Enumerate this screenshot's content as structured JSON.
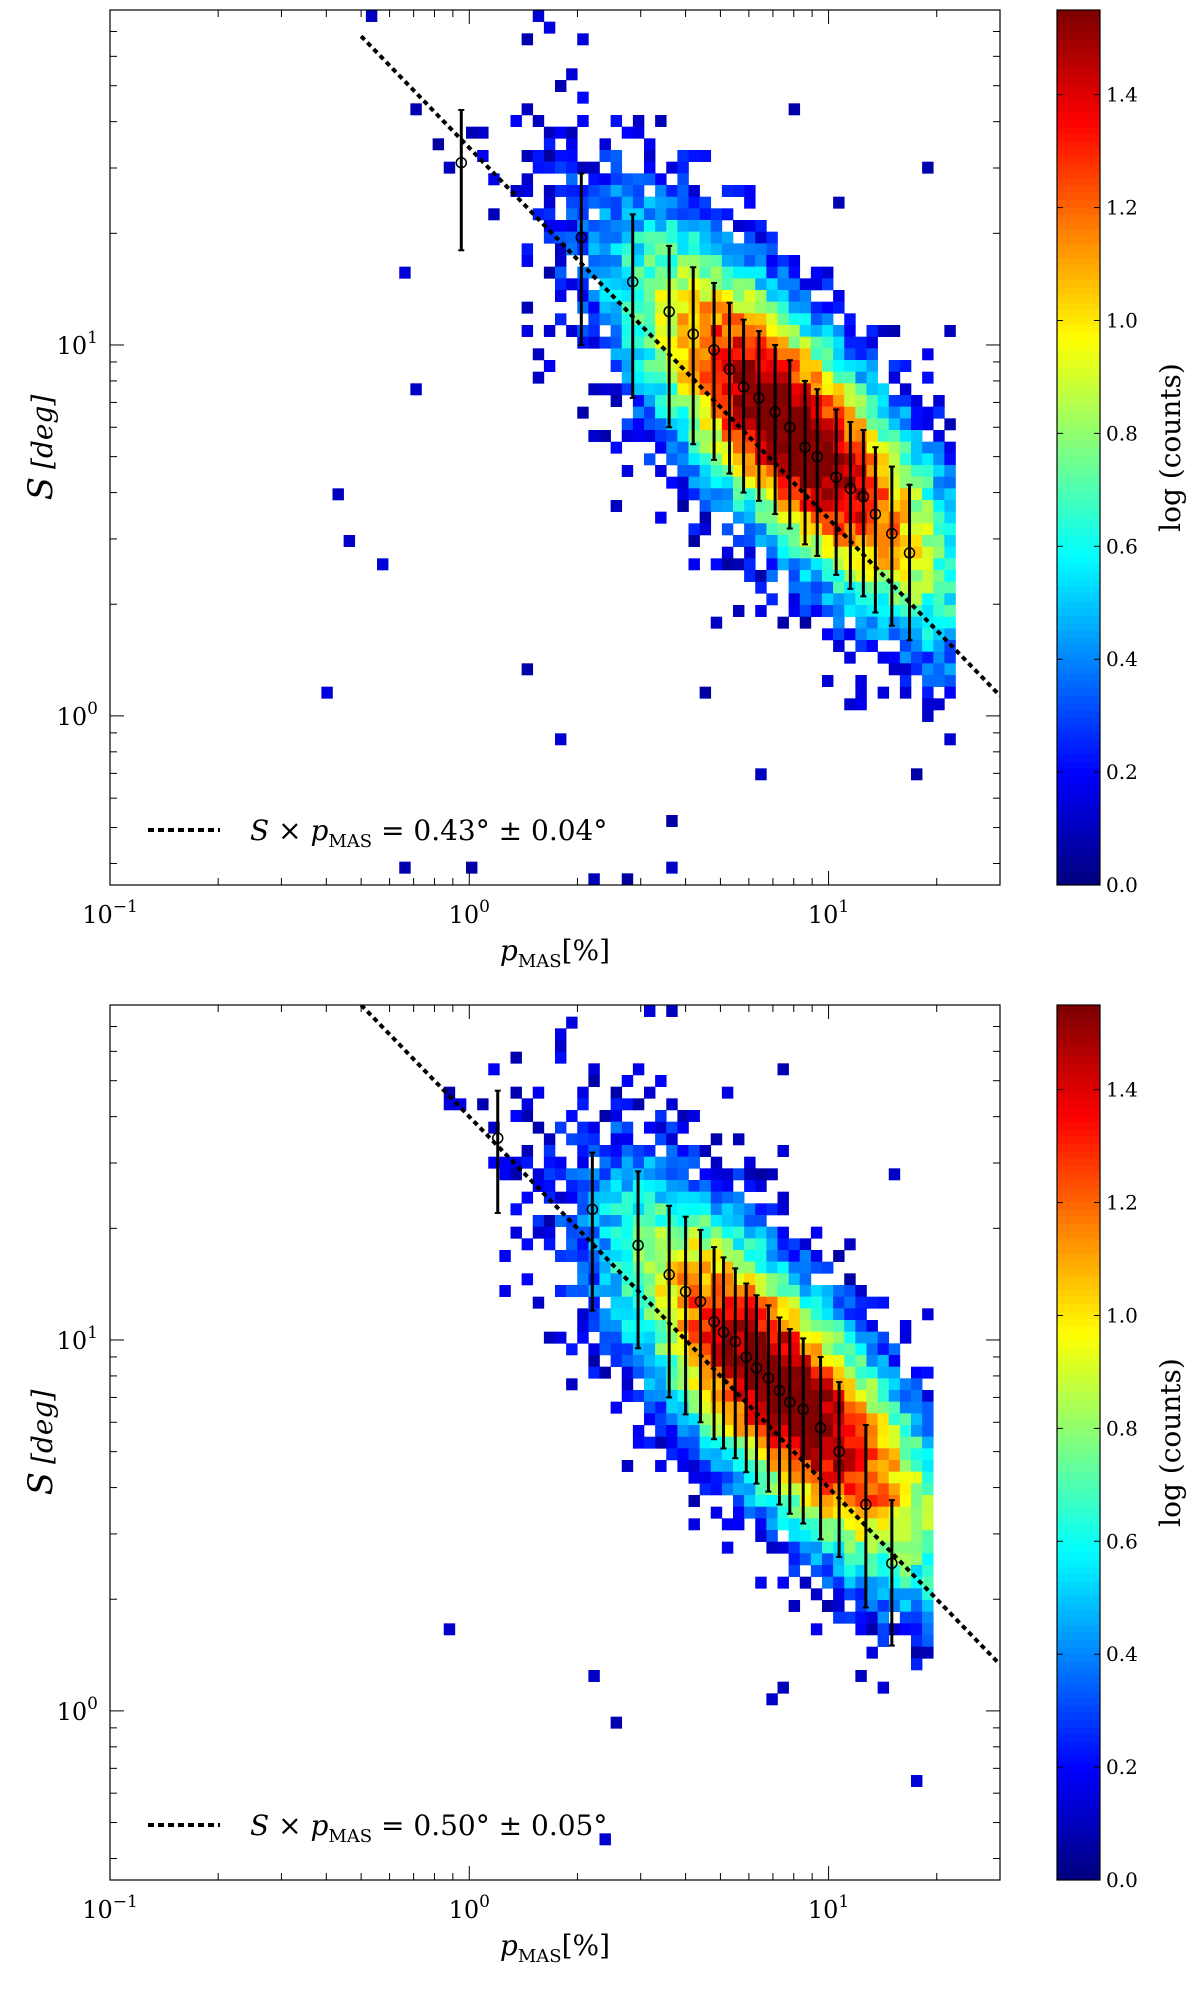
{
  "chart_data": [
    {
      "type": "heatmap",
      "panel": "top",
      "xlabel_base": "p",
      "xlabel_sub": "MAS",
      "xlabel_unit": "[%]",
      "ylabel_symbol": "S",
      "ylabel_unit": "[deg]",
      "xscale": "log",
      "yscale": "log",
      "xlim": [
        0.1,
        30
      ],
      "ylim": [
        0.35,
        80
      ],
      "x_ticks": [
        {
          "value": 0.1,
          "base": "10",
          "exp": "−1"
        },
        {
          "value": 1,
          "base": "10",
          "exp": "0"
        },
        {
          "value": 10,
          "base": "10",
          "exp": "1"
        }
      ],
      "y_ticks": [
        {
          "value": 1,
          "base": "10",
          "exp": "0"
        },
        {
          "value": 10,
          "base": "10",
          "exp": "1"
        }
      ],
      "colorbar": {
        "label": "log (counts)",
        "range": [
          0.0,
          1.55
        ],
        "ticks": [
          "0.0",
          "0.2",
          "0.4",
          "0.6",
          "0.8",
          "1.0",
          "1.2",
          "1.4"
        ]
      },
      "fit_line": {
        "product_deg": 0.43,
        "pivot_x": 1.0,
        "pivot_y": 34,
        "slope": -1,
        "x_start": 0.5,
        "x_end": 30
      },
      "legend": {
        "label_lhs": "S × p",
        "label_sub": "MAS",
        "label_rhs": " = 0.43° ± 0.04°",
        "position": "bottom-left"
      },
      "binned_x": [
        0.95,
        2.05,
        2.85,
        3.6,
        4.2,
        4.8,
        5.3,
        5.8,
        6.4,
        7.1,
        7.8,
        8.6,
        9.3,
        10.5,
        11.5,
        12.5,
        13.5,
        15.0,
        16.8
      ],
      "binned_y": [
        31,
        19.5,
        14.8,
        12.3,
        10.7,
        9.7,
        8.6,
        7.7,
        7.2,
        6.6,
        6.0,
        5.3,
        5.0,
        4.4,
        4.1,
        3.9,
        3.5,
        3.1,
        2.75
      ],
      "binned_ylow": [
        18,
        10,
        7.2,
        6.0,
        5.4,
        4.9,
        4.5,
        4.0,
        3.8,
        3.5,
        3.2,
        2.9,
        2.7,
        2.4,
        2.2,
        2.1,
        1.9,
        1.75,
        1.6
      ],
      "binned_yhigh": [
        43,
        29,
        22.5,
        18.5,
        16.2,
        14.7,
        13.0,
        11.7,
        10.9,
        10.0,
        9.1,
        8.0,
        7.6,
        6.7,
        6.2,
        5.9,
        5.3,
        4.7,
        4.2
      ]
    },
    {
      "type": "heatmap",
      "panel": "bottom",
      "xlabel_base": "p",
      "xlabel_sub": "MAS",
      "xlabel_unit": "[%]",
      "ylabel_symbol": "S",
      "ylabel_unit": "[deg]",
      "xscale": "log",
      "yscale": "log",
      "xlim": [
        0.1,
        30
      ],
      "ylim": [
        0.35,
        80
      ],
      "x_ticks": [
        {
          "value": 0.1,
          "base": "10",
          "exp": "−1"
        },
        {
          "value": 1,
          "base": "10",
          "exp": "0"
        },
        {
          "value": 10,
          "base": "10",
          "exp": "1"
        }
      ],
      "y_ticks": [
        {
          "value": 1,
          "base": "10",
          "exp": "0"
        },
        {
          "value": 10,
          "base": "10",
          "exp": "1"
        }
      ],
      "colorbar": {
        "label": "log (counts)",
        "range": [
          0.0,
          1.55
        ],
        "ticks": [
          "0.0",
          "0.2",
          "0.4",
          "0.6",
          "0.8",
          "1.0",
          "1.2",
          "1.4"
        ]
      },
      "fit_line": {
        "product_deg": 0.5,
        "pivot_x": 1.0,
        "pivot_y": 40,
        "slope": -1,
        "x_start": 0.5,
        "x_end": 30
      },
      "legend": {
        "label_lhs": "S × p",
        "label_sub": "MAS",
        "label_rhs": " = 0.50° ± 0.05°",
        "position": "bottom-left"
      },
      "binned_x": [
        1.2,
        2.2,
        2.95,
        3.6,
        4.0,
        4.4,
        4.8,
        5.1,
        5.5,
        5.9,
        6.3,
        6.8,
        7.3,
        7.8,
        8.5,
        9.5,
        10.7,
        12.7,
        15.0
      ],
      "binned_y": [
        35,
        22.5,
        18,
        15,
        13.5,
        12.7,
        11.2,
        10.5,
        9.9,
        9.0,
        8.4,
        7.9,
        7.3,
        6.8,
        6.5,
        5.8,
        5.0,
        3.6,
        2.5
      ],
      "binned_ylow": [
        22,
        12,
        9.5,
        7.0,
        6.3,
        6.0,
        5.4,
        5.1,
        4.8,
        4.4,
        4.1,
        3.9,
        3.6,
        3.4,
        3.2,
        2.9,
        2.6,
        1.9,
        1.5
      ],
      "binned_yhigh": [
        47,
        32,
        28.5,
        23,
        21.5,
        19.8,
        17.8,
        16.7,
        15.6,
        14.2,
        13.2,
        12.4,
        11.5,
        10.7,
        10.1,
        9.0,
        7.7,
        5.9,
        3.7
      ]
    }
  ]
}
